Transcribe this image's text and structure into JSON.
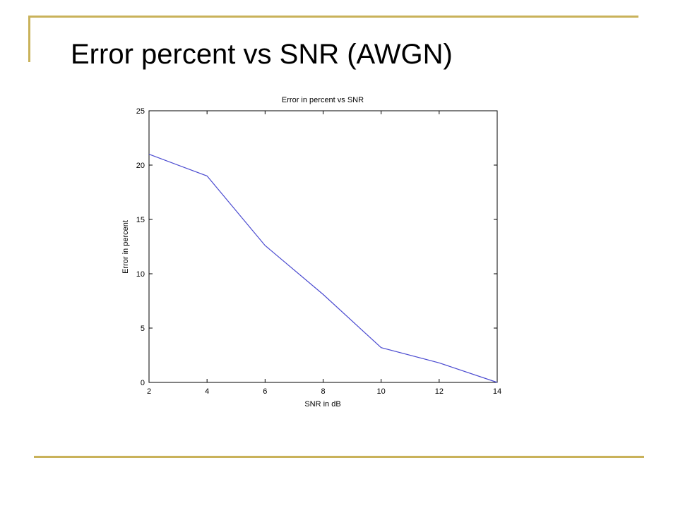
{
  "slide": {
    "title": "Error percent vs SNR (AWGN)"
  },
  "colors": {
    "accent_line": "#c9b25a",
    "series_line": "#4a4ad0"
  },
  "chart_data": {
    "type": "line",
    "title": "Error in percent vs SNR",
    "xlabel": "SNR in dB",
    "ylabel": "Error in percent",
    "xlim": [
      2,
      14
    ],
    "ylim": [
      0,
      25
    ],
    "xticks": [
      2,
      4,
      6,
      8,
      10,
      12,
      14
    ],
    "yticks": [
      0,
      5,
      10,
      15,
      20,
      25
    ],
    "grid": false,
    "series": [
      {
        "x": [
          2,
          4,
          6,
          8,
          10,
          12,
          14
        ],
        "y": [
          21,
          19,
          12.6,
          8.1,
          3.2,
          1.8,
          0
        ]
      }
    ]
  }
}
